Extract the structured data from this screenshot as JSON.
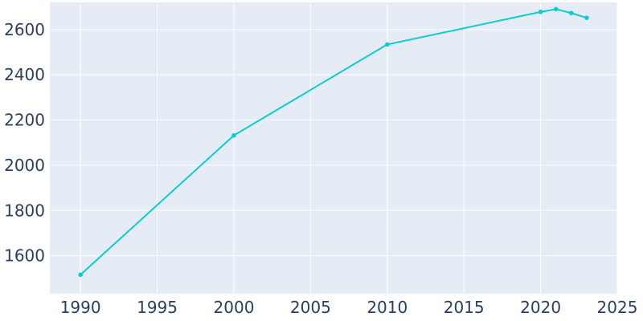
{
  "chart_data": {
    "type": "line",
    "title": "",
    "xlabel": "",
    "ylabel": "",
    "x": [
      1990,
      2000,
      2010,
      2020,
      2021,
      2022,
      2023
    ],
    "series": [
      {
        "values": [
          1516,
          2132,
          2534,
          2678,
          2690,
          2673,
          2652
        ],
        "color": "#0bcdd1"
      }
    ],
    "xlim": [
      1988,
      2025
    ],
    "ylim": [
      1432,
      2720
    ],
    "x_ticks": [
      1990,
      1995,
      2000,
      2005,
      2010,
      2015,
      2020,
      2025
    ],
    "y_ticks": [
      1600,
      1800,
      2000,
      2200,
      2400,
      2600
    ],
    "grid": true,
    "legend": false,
    "colors": {
      "plot_background": "#e5ecf6",
      "grid": "#ffffff",
      "tick_text": "#2a3f5f"
    }
  }
}
